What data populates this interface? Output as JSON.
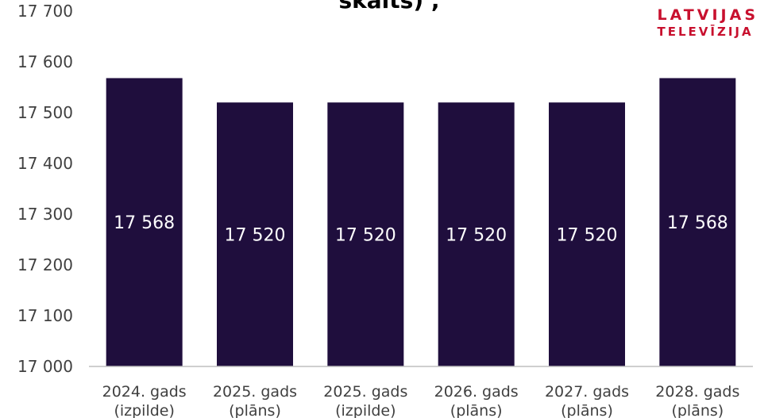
{
  "logo": {
    "line1": "LATVIJAS",
    "line2": "TELEVĪZIJA"
  },
  "title": "skaits) ,",
  "colors": {
    "bar": "#1f0e3d",
    "bar_label": "#ffffff",
    "axis": "#bfbfbf",
    "text": "#404040",
    "logo": "#c8102e"
  },
  "chart_data": {
    "type": "bar",
    "categories": [
      [
        "2024. gads",
        "(izpilde)"
      ],
      [
        "2025. gads",
        "(plāns)"
      ],
      [
        "2025. gads",
        "(izpilde)"
      ],
      [
        "2026. gads",
        "(plāns)"
      ],
      [
        "2027. gads",
        "(plāns)"
      ],
      [
        "2028. gads",
        "(plāns)"
      ]
    ],
    "values": [
      17568,
      17520,
      17520,
      17520,
      17520,
      17568
    ],
    "value_labels": [
      "17 568",
      "17 520",
      "17 520",
      "17 520",
      "17 520",
      "17 568"
    ],
    "ylim": [
      17000,
      17700
    ],
    "yticks": [
      17000,
      17100,
      17200,
      17300,
      17400,
      17500,
      17600,
      17700
    ],
    "ytick_labels": [
      "17 000",
      "17 100",
      "17 200",
      "17 300",
      "17 400",
      "17 500",
      "17 600",
      "17 700"
    ],
    "grid": false
  }
}
